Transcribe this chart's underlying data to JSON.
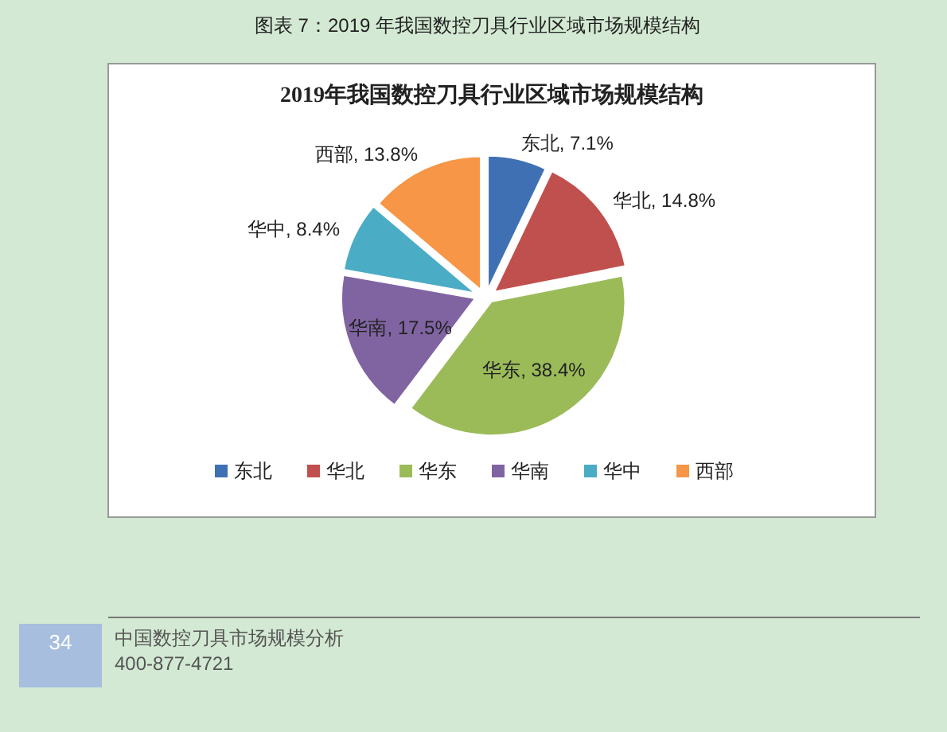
{
  "chart_data": {
    "type": "pie",
    "title": "2019年我国数控刀具行业区域市场规模结构",
    "categories": [
      "东北",
      "华北",
      "华东",
      "华南",
      "华中",
      "西部"
    ],
    "values": [
      7.1,
      14.8,
      38.4,
      17.5,
      8.4,
      13.8
    ],
    "colors": [
      "#3f70b4",
      "#c0504d",
      "#9bbb59",
      "#8064a2",
      "#4bacc6",
      "#f79646"
    ],
    "value_labels": [
      "东北, 7.1%",
      "华北, 14.8%",
      "华东, 38.4%",
      "华南, 17.5%",
      "华中, 8.4%",
      "西部, 13.8%"
    ],
    "legend": "bottom",
    "annotations": [
      "图表 7：2019 年我国数控刀具行业区域市场规模结构",
      "34",
      "中国数控刀具市场规模分析",
      "400-877-4721"
    ]
  }
}
